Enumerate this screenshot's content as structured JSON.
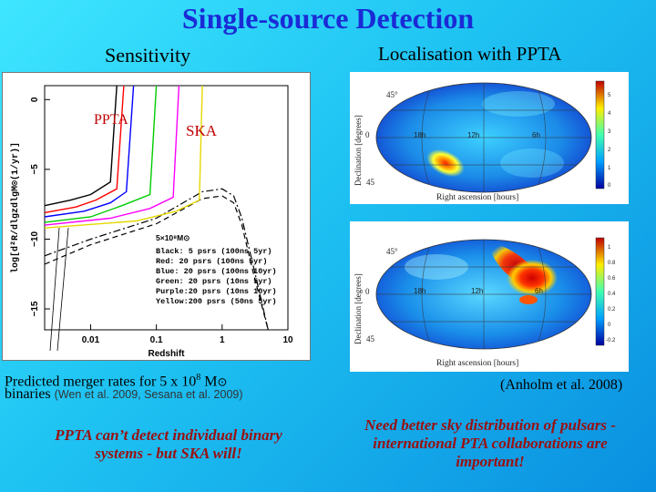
{
  "slide": {
    "title": "Single-source Detection",
    "left_heading": "Sensitivity",
    "right_heading": "Localisation with PPTA",
    "ppta_tag": "PPTA",
    "ska_tag": "SKA",
    "caption_main": "Predicted merger rates for 5 x 10",
    "caption_exp": "8",
    "caption_unit": "M",
    "caption_sym": "⊙",
    "caption_line2": "binaries",
    "caption_ref": "(Wen et al. 2009, Sesana et al. 2009)",
    "anholm_ref": "(Anholm et al. 2008)",
    "statement_left": "PPTA can’t detect individual binary systems - but SKA will!",
    "statement_right": "Need better sky distribution of pulsars - international PTA collaborations are important!"
  },
  "chart_data": {
    "type": "line",
    "xlabel": "Redshift",
    "ylabel": "log[d²R/dlgzdlgM⊙(1/yr)]",
    "xscale": "log",
    "xlim": [
      0.002,
      10
    ],
    "ylim": [
      -16.5,
      1
    ],
    "x_ticks": [
      "0.01",
      "0.1",
      "1",
      "10"
    ],
    "y_ticks": [
      "0",
      "−5",
      "−10",
      "−15"
    ],
    "legend_title": "5×10⁸M⊙",
    "legend": [
      "Black:  5 psrs (100ns 5yr)",
      "Red:   20 psrs (100ns 5yr)",
      "Blue:  20 psrs (100ns 10yr)",
      "Green: 20 psrs (10ns 5yr)",
      "Purple:20 psrs (10ns 10yr)",
      "Yellow:200 psrs (50ns 5yr)"
    ],
    "series": [
      {
        "color": "#000000",
        "x": [
          0.002,
          0.005,
          0.01,
          0.02,
          0.025
        ],
        "y": [
          -7.6,
          -7.2,
          -6.8,
          -5.9,
          1
        ]
      },
      {
        "color": "#ff0000",
        "x": [
          0.002,
          0.006,
          0.012,
          0.025,
          0.032
        ],
        "y": [
          -8.1,
          -7.7,
          -7.2,
          -6.4,
          1
        ]
      },
      {
        "color": "#0000ff",
        "x": [
          0.002,
          0.008,
          0.02,
          0.035,
          0.045
        ],
        "y": [
          -8.4,
          -8.0,
          -7.4,
          -6.6,
          1
        ]
      },
      {
        "color": "#00cc00",
        "x": [
          0.002,
          0.01,
          0.03,
          0.08,
          0.1
        ],
        "y": [
          -8.8,
          -8.4,
          -7.6,
          -6.8,
          1
        ]
      },
      {
        "color": "#ff00ff",
        "x": [
          0.002,
          0.02,
          0.08,
          0.18,
          0.22
        ],
        "y": [
          -9.0,
          -8.5,
          -7.8,
          -7.0,
          1
        ]
      },
      {
        "color": "#e6d800",
        "x": [
          0.002,
          0.05,
          0.2,
          0.45,
          0.5
        ],
        "y": [
          -9.2,
          -8.7,
          -8.0,
          -7.2,
          1
        ]
      }
    ],
    "rate_curves": [
      {
        "style": "dash-dot",
        "x": [
          0.002,
          0.01,
          0.1,
          0.5,
          1,
          1.5,
          2,
          3,
          5
        ],
        "y": [
          -11.2,
          -10.0,
          -8.5,
          -6.6,
          -6.4,
          -6.9,
          -8.5,
          -12,
          -16.5
        ]
      },
      {
        "style": "dashed",
        "x": [
          0.002,
          0.01,
          0.1,
          0.5,
          1,
          1.5,
          2,
          3,
          5
        ],
        "y": [
          -11.8,
          -10.4,
          -8.9,
          -7.1,
          -6.9,
          -7.4,
          -9.0,
          -12.5,
          -16.5
        ]
      }
    ]
  },
  "sky_top": {
    "xlabel": "Right ascension [hours]",
    "ylabel": "Declination [degrees]",
    "ra_labels": [
      "18h",
      "12h",
      "6h"
    ],
    "dec_labels": [
      "45°",
      "0",
      "45"
    ],
    "colorbar_ticks": [
      "5",
      "4",
      "3",
      "2",
      "1",
      "0"
    ]
  },
  "sky_bottom": {
    "xlabel": "Right ascension [hours]",
    "ylabel": "Declination [degrees]",
    "ra_labels": [
      "18h",
      "12h",
      "6h"
    ],
    "dec_labels": [
      "45°",
      "0",
      "45"
    ],
    "colorbar_ticks": [
      "1",
      "0.8",
      "0.6",
      "0.4",
      "0.2",
      "0",
      "-0.2"
    ]
  }
}
